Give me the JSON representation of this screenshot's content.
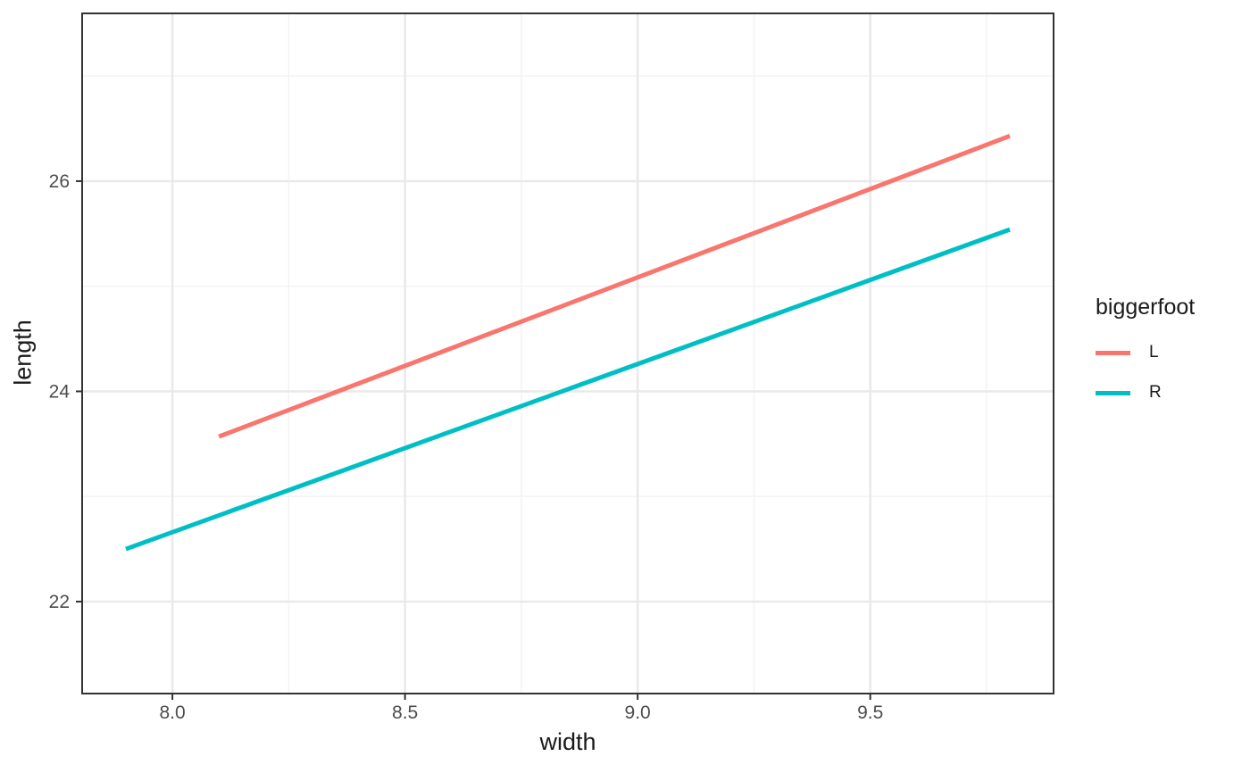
{
  "chart_data": {
    "type": "line",
    "title": "",
    "xlabel": "width",
    "ylabel": "length",
    "xlim": [
      7.806,
      9.894
    ],
    "ylim": [
      21.125,
      27.596
    ],
    "xticks": [
      8.0,
      8.5,
      9.0,
      9.5
    ],
    "xtick_labels": [
      "8.0",
      "8.5",
      "9.0",
      "9.5"
    ],
    "yticks": [
      22,
      24,
      26
    ],
    "ytick_labels": [
      "22",
      "24",
      "26"
    ],
    "x_minor_gridlines": [
      8.25,
      8.75,
      9.25,
      9.75
    ],
    "y_minor_gridlines": [
      23,
      25,
      27
    ],
    "grid": true,
    "legend": {
      "title": "biggerfoot",
      "position": "right",
      "entries": [
        "L",
        "R"
      ]
    },
    "series": [
      {
        "name": "L",
        "color": "#F8766D",
        "points": [
          [
            8.1,
            23.57
          ],
          [
            9.8,
            26.43
          ]
        ]
      },
      {
        "name": "R",
        "color": "#00BFC4",
        "points": [
          [
            7.9,
            22.5
          ],
          [
            9.8,
            25.54
          ]
        ]
      }
    ],
    "colors": {
      "panel_bg": "#FFFFFF",
      "grid_major": "#E9E9E9",
      "grid_minor": "#F3F3F3",
      "panel_border": "#333333",
      "tick_mark": "#333333",
      "tick_label": "#4D4D4D",
      "axis_title": "#1A1A1A"
    }
  }
}
